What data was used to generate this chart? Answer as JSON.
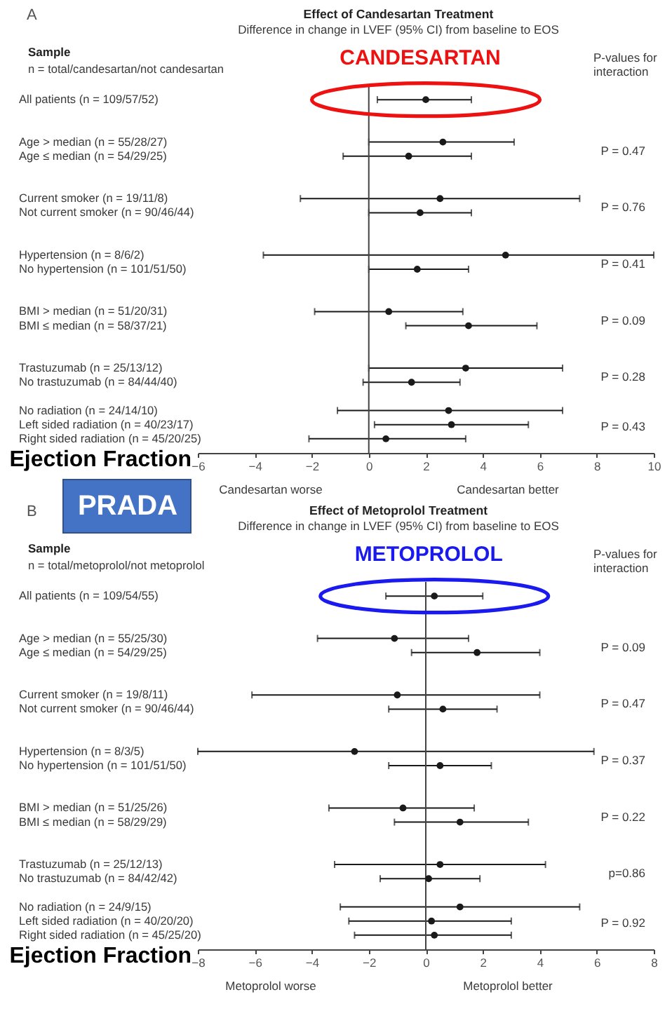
{
  "chart_data": [
    {
      "type": "scatter",
      "orientation": "horizontal",
      "title": "Effect of Candesartan Treatment",
      "subtitle": "Difference in change in LVEF (95% CI) from baseline to EOS",
      "xlabel": "Ejection Fraction",
      "ylabel": "Sample",
      "categories": [
        "All patients (n = 109/57/52)",
        null,
        null,
        "Age > median (n = 55/28/27)",
        "Age ≤ median (n = 54/29/25)",
        null,
        null,
        "Current smoker (n = 19/11/8)",
        "Not current smoker (n = 90/46/44)",
        null,
        null,
        "Hypertension (n = 8/6/2)",
        "No hypertension (n = 101/51/50)",
        null,
        null,
        "BMI > median (n = 51/20/31)",
        "BMI ≤ median (n = 58/37/21)",
        null,
        null,
        "Trastuzumab (n = 25/13/12)",
        "No trastuzumab (n = 84/44/40)",
        null,
        "No radiation (n = 24/14/10)",
        "Left sided radiation (n = 40/23/17)",
        "Right sided radiation (n = 45/20/25)"
      ],
      "series": [
        {
          "color": "#1a1a1a",
          "values": [
            2.0,
            null,
            null,
            2.6,
            1.4,
            null,
            null,
            2.5,
            1.8,
            null,
            null,
            4.8,
            1.7,
            null,
            null,
            0.7,
            3.5,
            null,
            null,
            3.4,
            1.5,
            null,
            2.8,
            2.9,
            0.6
          ],
          "errors": [
            [
              0.3,
              3.6
            ],
            null,
            null,
            [
              0.0,
              5.1
            ],
            [
              -0.9,
              3.6
            ],
            null,
            null,
            [
              -2.4,
              7.4
            ],
            [
              0.0,
              3.6
            ],
            null,
            null,
            [
              -3.7,
              10
            ],
            [
              0.0,
              3.5
            ],
            null,
            null,
            [
              -1.9,
              3.3
            ],
            [
              1.3,
              5.9
            ],
            null,
            null,
            [
              0.0,
              6.8
            ],
            [
              -0.2,
              3.2
            ],
            null,
            [
              -1.1,
              6.8
            ],
            [
              0.2,
              5.6
            ],
            [
              -2.1,
              3.4
            ]
          ]
        }
      ],
      "marker": "circle",
      "xlim": [
        -6,
        10
      ],
      "xticks": [
        -6,
        -4,
        -2,
        0,
        2,
        4,
        6,
        8,
        10
      ],
      "ref_lines": [
        {
          "axis": "x",
          "value": 0,
          "color": "#444444"
        }
      ],
      "annotations": [
        "A",
        "n = total/candesartan/not candesartan",
        "P-values for interaction",
        "Candesartan worse",
        "Candesartan better",
        "PRADA",
        "P = 0.47",
        "P = 0.76",
        "P = 0.41",
        "P = 0.09",
        "P = 0.28",
        "P = 0.43",
        {
          "text": "CANDESARTAN",
          "x": 2.0,
          "y": "All patients (n = 109/57/52)"
        }
      ]
    },
    {
      "type": "scatter",
      "orientation": "horizontal",
      "title": "Effect of Metoprolol Treatment",
      "subtitle": "Difference in change in LVEF (95% CI) from baseline to EOS",
      "xlabel": "Ejection Fraction",
      "ylabel": "Sample",
      "categories": [
        "All patients (n = 109/54/55)",
        null,
        null,
        "Age > median (n = 55/25/30)",
        "Age ≤ median (n = 54/29/25)",
        null,
        null,
        "Current smoker (n = 19/8/11)",
        "Not current smoker (n = 90/46/44)",
        null,
        null,
        "Hypertension (n = 8/3/5)",
        "No hypertension (n = 101/51/50)",
        null,
        null,
        "BMI > median (n = 51/25/26)",
        "BMI ≤ median (n = 58/29/29)",
        null,
        null,
        "Trastuzumab (n = 25/12/13)",
        "No trastuzumab (n = 84/42/42)",
        null,
        "No radiation (n = 24/9/15)",
        "Left sided radiation (n = 40/20/20)",
        "Right sided radiation (n = 45/25/20)"
      ],
      "series": [
        {
          "color": "#1a1a1a",
          "values": [
            0.3,
            null,
            null,
            -1.1,
            1.8,
            null,
            null,
            -1.0,
            0.6,
            null,
            null,
            -2.5,
            0.5,
            null,
            null,
            -0.8,
            1.2,
            null,
            null,
            0.5,
            0.1,
            null,
            1.2,
            0.2,
            0.3
          ],
          "errors": [
            [
              -1.4,
              2.0
            ],
            null,
            null,
            [
              -3.8,
              1.5
            ],
            [
              -0.5,
              4.0
            ],
            null,
            null,
            [
              -6.1,
              4.0
            ],
            [
              -1.3,
              2.5
            ],
            null,
            null,
            [
              -8,
              5.9
            ],
            [
              -1.3,
              2.3
            ],
            null,
            null,
            [
              -3.4,
              1.7
            ],
            [
              -1.1,
              3.6
            ],
            null,
            null,
            [
              -3.2,
              4.2
            ],
            [
              -1.6,
              1.9
            ],
            null,
            [
              -3.0,
              5.4
            ],
            [
              -2.7,
              3.0
            ],
            [
              -2.5,
              3.0
            ]
          ]
        }
      ],
      "marker": "circle",
      "xlim": [
        -8,
        8
      ],
      "xticks": [
        -8,
        -6,
        -4,
        -2,
        0,
        2,
        4,
        6,
        8
      ],
      "ref_lines": [
        {
          "axis": "x",
          "value": 0,
          "color": "#444444"
        }
      ],
      "annotations": [
        "B",
        "n = total/metoprolol/not metoprolol",
        "P-values for interaction",
        "Metoprolol worse",
        "Metoprolol better",
        "P = 0.09",
        "P = 0.47",
        "P = 0.37",
        "P = 0.22",
        "p=0.86",
        "P = 0.92",
        {
          "text": "METOPROLOL",
          "x": 0.3,
          "y": "All patients (n = 109/54/55)"
        }
      ]
    }
  ]
}
